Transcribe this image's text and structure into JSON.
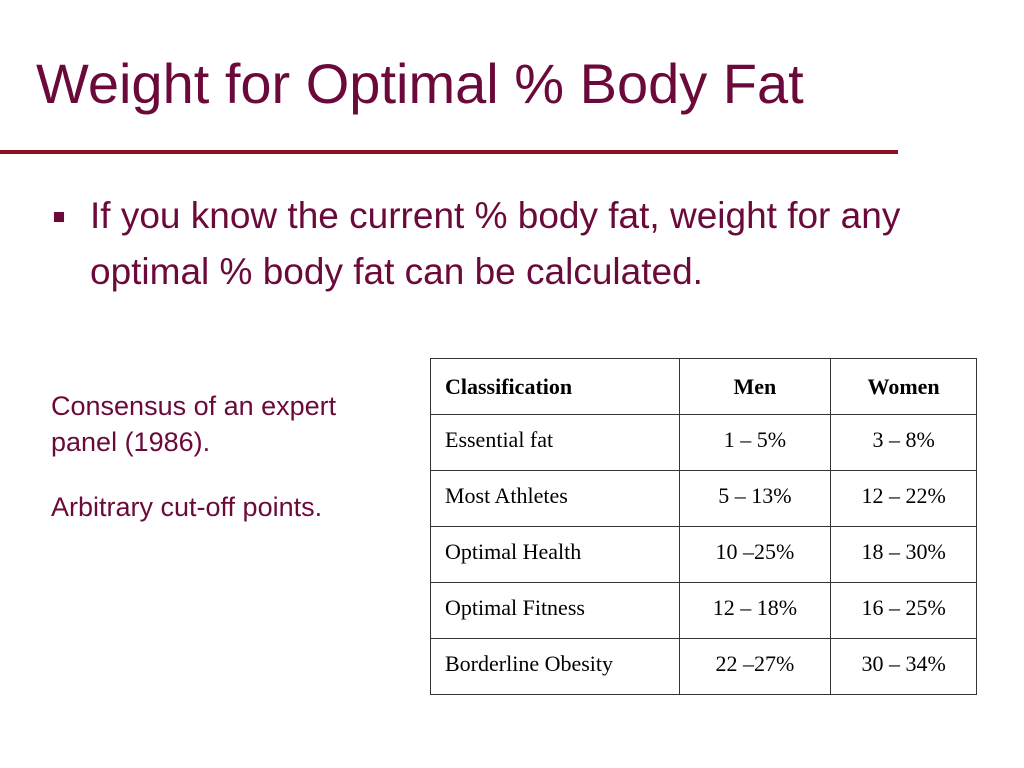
{
  "slide": {
    "title": "Weight for Optimal % Body Fat",
    "bullet": "If you know the current % body fat, weight for any optimal % body fat can be calculated.",
    "notes": [
      "Consensus of an expert panel (1986).",
      "Arbitrary cut-off points."
    ],
    "colors": {
      "title_text": "#6b0a3a",
      "rule": "#8b1020",
      "table_border": "#333333"
    }
  },
  "table": {
    "headers": [
      "Classification",
      "Men",
      "Women"
    ],
    "rows": [
      [
        "Essential fat",
        "1 – 5%",
        "3 – 8%"
      ],
      [
        "Most Athletes",
        "5 – 13%",
        "12 – 22%"
      ],
      [
        "Optimal Health",
        "10 –25%",
        "18 – 30%"
      ],
      [
        "Optimal Fitness",
        "12 – 18%",
        "16 – 25%"
      ],
      [
        "Borderline Obesity",
        "22 –27%",
        "30 – 34%"
      ]
    ]
  }
}
